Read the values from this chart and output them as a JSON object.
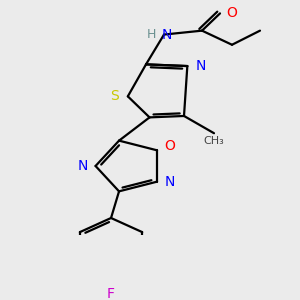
{
  "bg_color": "#ebebeb",
  "line_color": "#000000",
  "atom_colors": {
    "N": "#0000ff",
    "O": "#ff0000",
    "S": "#c8c800",
    "F": "#cc00cc",
    "C": "#000000",
    "H": "#6a9090"
  },
  "lw": 1.6,
  "font_size": 10
}
